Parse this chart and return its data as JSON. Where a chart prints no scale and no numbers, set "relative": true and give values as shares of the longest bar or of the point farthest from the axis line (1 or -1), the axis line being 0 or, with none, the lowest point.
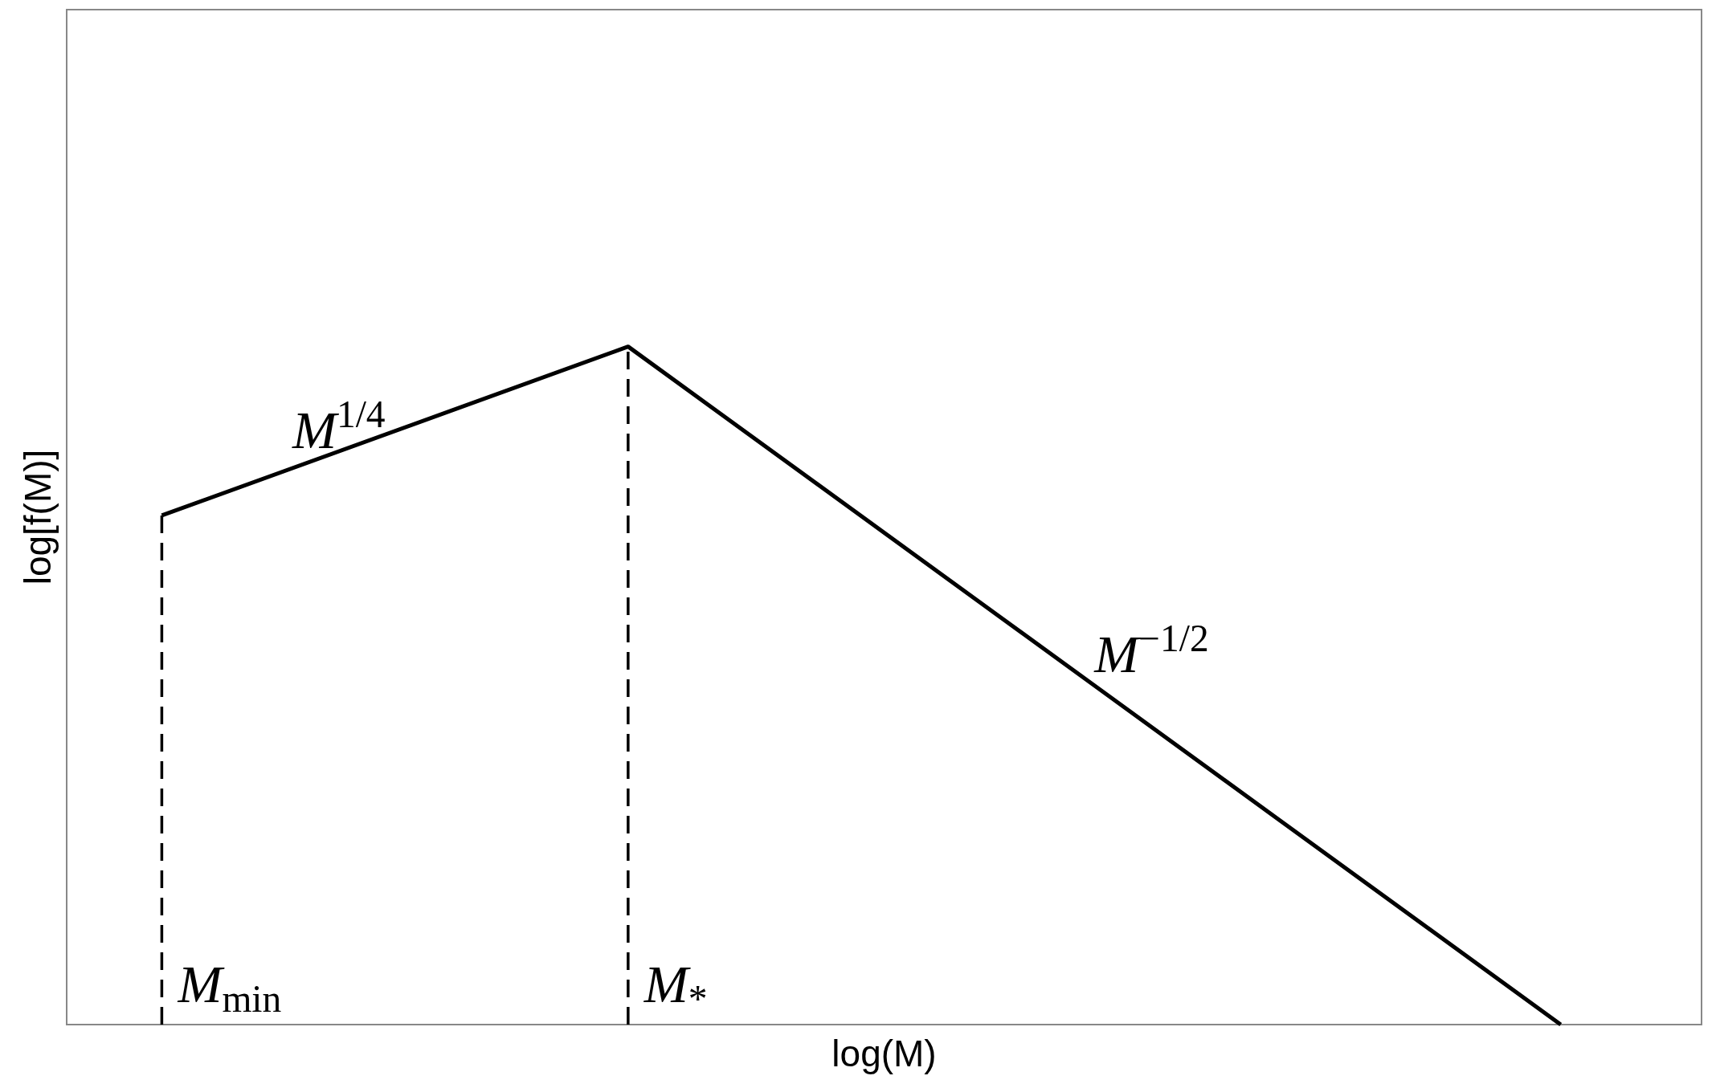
{
  "chart_data": {
    "type": "line",
    "relative": true,
    "xlabel": "log(M)",
    "ylabel": "log[f(M)]",
    "categories": [
      null,
      null,
      null,
      null
    ],
    "series": [
      {
        "color": "#000000",
        "values": [
          0.751,
          1,
          0.5,
          0
        ]
      }
    ],
    "annotations": [
      "M$_{min}$",
      "M$_{*}$",
      "M$^{1/4}$",
      "M$^{−1/2}$"
    ]
  }
}
